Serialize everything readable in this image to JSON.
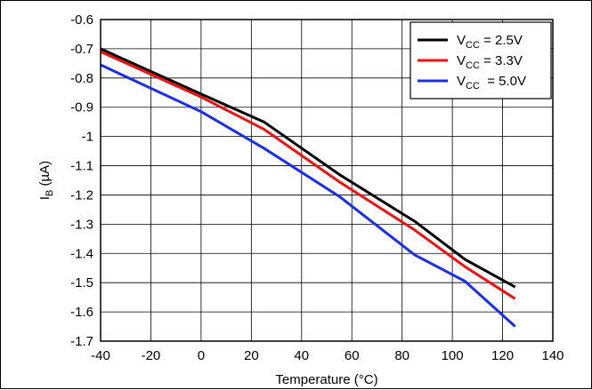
{
  "chart_data": {
    "type": "line",
    "xlabel": "Temperature (°C)",
    "ylabel": {
      "main": "I",
      "sub": "B",
      "unit": " (µA)"
    },
    "xlim": [
      -40,
      140
    ],
    "ylim": [
      -1.7,
      -0.6
    ],
    "x_ticks": [
      "-40",
      "-20",
      "0",
      "20",
      "40",
      "60",
      "80",
      "100",
      "120",
      "140"
    ],
    "y_ticks": [
      "-0.6",
      "-0.7",
      "-0.8",
      "-0.9",
      "-1",
      "-1.1",
      "-1.2",
      "-1.3",
      "-1.4",
      "-1.5",
      "-1.6",
      "-1.7"
    ],
    "x_tick_values": [
      -40,
      -20,
      0,
      20,
      40,
      60,
      80,
      100,
      120,
      140
    ],
    "y_tick_values": [
      -0.6,
      -0.7,
      -0.8,
      -0.9,
      -1.0,
      -1.1,
      -1.2,
      -1.3,
      -1.4,
      -1.5,
      -1.6,
      -1.7
    ],
    "grid": true,
    "legend_position": "top-right",
    "series": [
      {
        "name": {
          "prefix": "V",
          "sub": "CC",
          "suffix": " = 2.5V"
        },
        "color": "#000000",
        "points": [
          [
            -40,
            -0.7
          ],
          [
            0,
            -0.855
          ],
          [
            25,
            -0.95
          ],
          [
            55,
            -1.13
          ],
          [
            85,
            -1.29
          ],
          [
            105,
            -1.42
          ],
          [
            125,
            -1.515
          ]
        ]
      },
      {
        "name": {
          "prefix": "V",
          "sub": "CC",
          "suffix": " = 3.3V"
        },
        "color": "#ee1111",
        "points": [
          [
            -40,
            -0.71
          ],
          [
            0,
            -0.865
          ],
          [
            25,
            -0.975
          ],
          [
            55,
            -1.155
          ],
          [
            85,
            -1.32
          ],
          [
            105,
            -1.445
          ],
          [
            125,
            -1.555
          ]
        ]
      },
      {
        "name": {
          "prefix": "V",
          "sub": "CC",
          "suffix": "  = 5.0V"
        },
        "color": "#1a2ee8",
        "points": [
          [
            -40,
            -0.755
          ],
          [
            0,
            -0.915
          ],
          [
            25,
            -1.04
          ],
          [
            55,
            -1.205
          ],
          [
            85,
            -1.405
          ],
          [
            105,
            -1.495
          ],
          [
            125,
            -1.65
          ]
        ]
      }
    ]
  }
}
